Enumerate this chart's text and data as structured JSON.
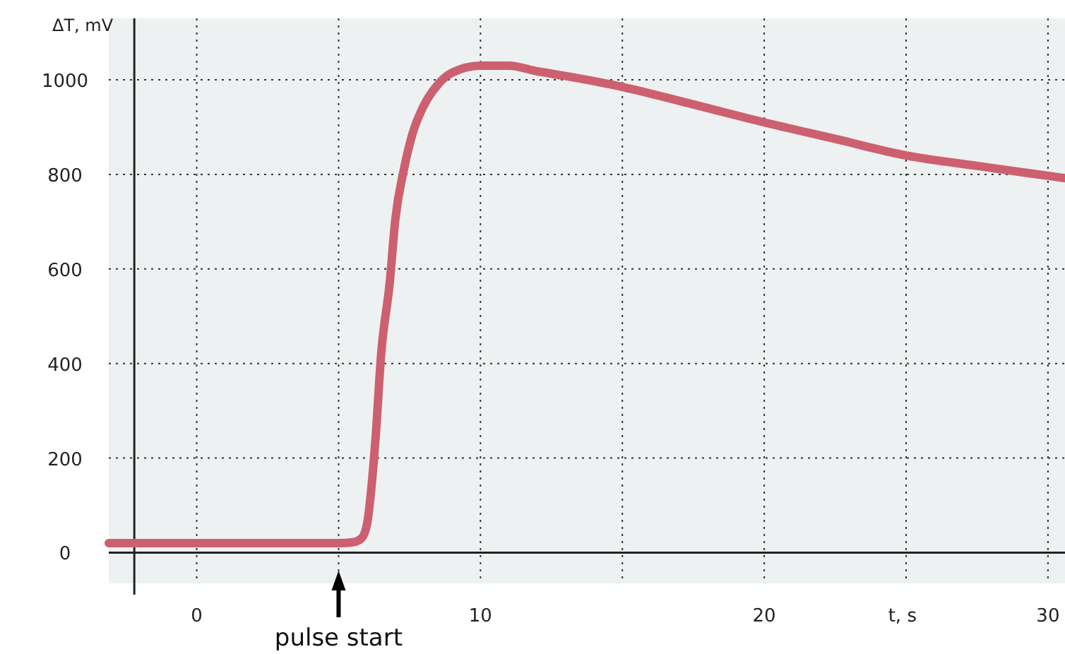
{
  "chart_data": {
    "type": "line",
    "ylabel": "ΔT, mV",
    "xlabel": "t, s",
    "xlim": [
      -3.1,
      30.6
    ],
    "ylim": [
      -65,
      1130
    ],
    "xticks": [
      0,
      {
        "value": 5,
        "label": null
      },
      10,
      {
        "value": 15,
        "label": null
      },
      20,
      {
        "value": 25,
        "label": null
      },
      30
    ],
    "yticks": [
      0,
      200,
      400,
      600,
      800,
      1000
    ],
    "grid": true,
    "marker": "none",
    "line_style": "solid",
    "series": [
      {
        "color": "#cc6070",
        "x": [
          -3.1,
          -2,
          0,
          2,
          4,
          5,
          5.5,
          5.8,
          6.0,
          6.3,
          6.5,
          6.8,
          7.0,
          7.3,
          7.6,
          8.0,
          8.5,
          9.0,
          10,
          11,
          12,
          13,
          15,
          17.5,
          20,
          22.5,
          25,
          27.5,
          30,
          30.6
        ],
        "values": [
          20,
          20,
          20,
          20,
          20,
          20,
          22,
          30,
          60,
          240,
          420,
          570,
          705,
          810,
          885,
          945,
          990,
          1015,
          1030,
          1030,
          1018,
          1008,
          985,
          948,
          910,
          875,
          840,
          818,
          797,
          792
        ]
      }
    ],
    "ref_lines": [
      {
        "axis": "x",
        "value": 5,
        "label": "pulse start"
      },
      {
        "axis": "x",
        "value": -2.2,
        "color": "#222222"
      }
    ]
  }
}
